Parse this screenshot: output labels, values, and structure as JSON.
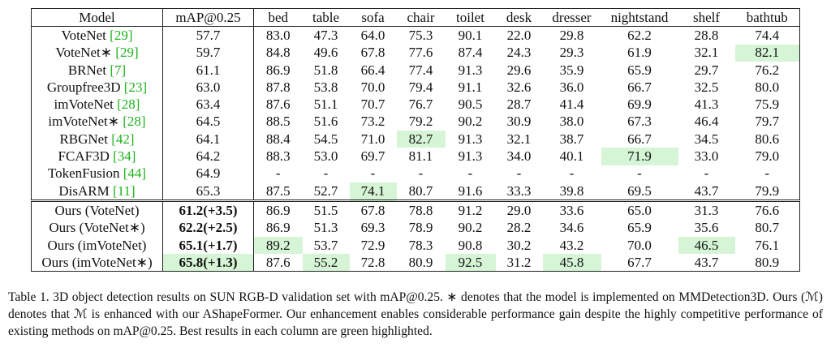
{
  "table": {
    "header": [
      "Model",
      "mAP@0.25",
      "bed",
      "table",
      "sofa",
      "chair",
      "toilet",
      "desk",
      "dresser",
      "nightstand",
      "shelf",
      "bathtub"
    ],
    "rows": [
      {
        "model": "VoteNet",
        "cite": "[29]",
        "cells": [
          "57.7",
          "83.0",
          "47.3",
          "64.0",
          "75.3",
          "90.1",
          "22.0",
          "29.8",
          "62.2",
          "28.8",
          "74.4"
        ],
        "best": []
      },
      {
        "model": "VoteNet∗",
        "cite": "[29]",
        "cells": [
          "59.7",
          "84.8",
          "49.6",
          "67.8",
          "77.6",
          "87.4",
          "24.3",
          "29.3",
          "61.9",
          "32.1",
          "82.1"
        ],
        "best": [
          10
        ]
      },
      {
        "model": "BRNet",
        "cite": "[7]",
        "cells": [
          "61.1",
          "86.9",
          "51.8",
          "66.4",
          "77.4",
          "91.3",
          "29.6",
          "35.9",
          "65.9",
          "29.7",
          "76.2"
        ],
        "best": []
      },
      {
        "model": "Groupfree3D",
        "cite": "[23]",
        "cells": [
          "63.0",
          "87.8",
          "53.8",
          "70.0",
          "79.4",
          "91.1",
          "32.6",
          "36.0",
          "66.7",
          "32.5",
          "80.0"
        ],
        "best": []
      },
      {
        "model": "imVoteNet",
        "cite": "[28]",
        "cells": [
          "63.4",
          "87.6",
          "51.1",
          "70.7",
          "76.7",
          "90.5",
          "28.7",
          "41.4",
          "69.9",
          "41.3",
          "75.9"
        ],
        "best": []
      },
      {
        "model": "imVoteNet∗",
        "cite": "[28]",
        "cells": [
          "64.5",
          "88.5",
          "51.6",
          "73.2",
          "79.2",
          "90.2",
          "30.9",
          "38.0",
          "67.3",
          "46.4",
          "79.7"
        ],
        "best": []
      },
      {
        "model": "RBGNet",
        "cite": "[42]",
        "cells": [
          "64.1",
          "88.4",
          "54.5",
          "71.0",
          "82.7",
          "91.3",
          "32.1",
          "38.7",
          "66.7",
          "34.5",
          "80.6"
        ],
        "best": [
          4
        ]
      },
      {
        "model": "FCAF3D",
        "cite": "[34]",
        "cells": [
          "64.2",
          "88.3",
          "53.0",
          "69.7",
          "81.1",
          "91.3",
          "34.0",
          "40.1",
          "71.9",
          "33.0",
          "79.0"
        ],
        "best": [
          8
        ]
      },
      {
        "model": "TokenFusion",
        "cite": "[44]",
        "cells": [
          "64.9",
          "-",
          "-",
          "-",
          "-",
          "-",
          "-",
          "-",
          "-",
          "-",
          "-"
        ],
        "best": []
      },
      {
        "model": "DisARM",
        "cite": "[11]",
        "cells": [
          "65.3",
          "87.5",
          "52.7",
          "74.1",
          "80.7",
          "91.6",
          "33.3",
          "39.8",
          "69.5",
          "43.7",
          "79.9"
        ],
        "best": [
          3
        ]
      },
      {
        "model": "Ours (VoteNet)",
        "ours": true,
        "cells": [
          "61.2(+3.5)",
          "86.9",
          "51.5",
          "67.8",
          "78.8",
          "91.2",
          "29.0",
          "33.6",
          "65.0",
          "31.3",
          "76.6"
        ],
        "best": []
      },
      {
        "model": "Ours (VoteNet∗)",
        "ours": true,
        "cells": [
          "62.2(+2.5)",
          "86.9",
          "51.3",
          "69.3",
          "78.9",
          "90.2",
          "28.2",
          "34.6",
          "65.9",
          "35.6",
          "80.7"
        ],
        "best": []
      },
      {
        "model": "Ours (imVoteNet)",
        "ours": true,
        "cells": [
          "65.1(+1.7)",
          "89.2",
          "53.7",
          "72.9",
          "78.3",
          "90.8",
          "30.2",
          "43.2",
          "70.0",
          "46.5",
          "76.1"
        ],
        "best": [
          1,
          9
        ]
      },
      {
        "model": "Ours (imVoteNet∗)",
        "ours": true,
        "cells": [
          "65.8(+1.3)",
          "87.6",
          "55.2",
          "72.8",
          "80.9",
          "92.5",
          "31.2",
          "45.8",
          "67.7",
          "43.7",
          "80.9"
        ],
        "best": [
          0,
          2,
          5,
          7
        ]
      }
    ]
  },
  "caption": "Table 1. 3D object detection results on SUN RGB-D validation set with mAP@0.25. ∗ denotes that the model is implemented on MMDetection3D. Ours (ℳ) denotes that ℳ is enhanced with our AShapeFormer. Our enhancement enables considerable performance gain despite the highly competitive performance of existing methods on mAP@0.25. Best results in each column are green highlighted."
}
